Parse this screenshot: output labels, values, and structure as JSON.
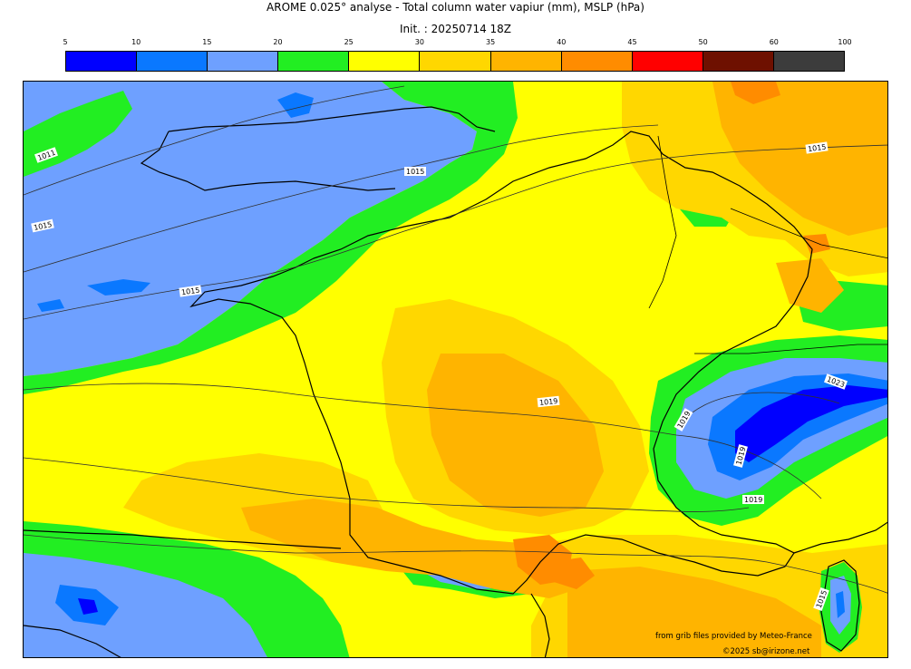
{
  "header": {
    "title": "AROME 0.025° analyse - Total column water vapiur (mm), MSLP (hPa)",
    "init": "Init. : 20250714 18Z"
  },
  "colorbar": {
    "ticks": [
      "5",
      "10",
      "15",
      "20",
      "25",
      "30",
      "35",
      "40",
      "45",
      "50",
      "60",
      "100"
    ],
    "colors": [
      "#0000ff",
      "#0a78ff",
      "#6ea0ff",
      "#22ee22",
      "#ffff00",
      "#ffd700",
      "#ffb400",
      "#ff8c00",
      "#ff0000",
      "#6e1000",
      "#3c3c3c"
    ]
  },
  "map": {
    "isobar_labels": [
      "1011",
      "1015",
      "1015",
      "1015",
      "1015",
      "1019",
      "1019",
      "1023",
      "1019",
      "1019",
      "1015"
    ]
  },
  "credits": {
    "source": "from grib files provided by Meteo-France",
    "copyright": "©2025 sb@irizone.net"
  }
}
